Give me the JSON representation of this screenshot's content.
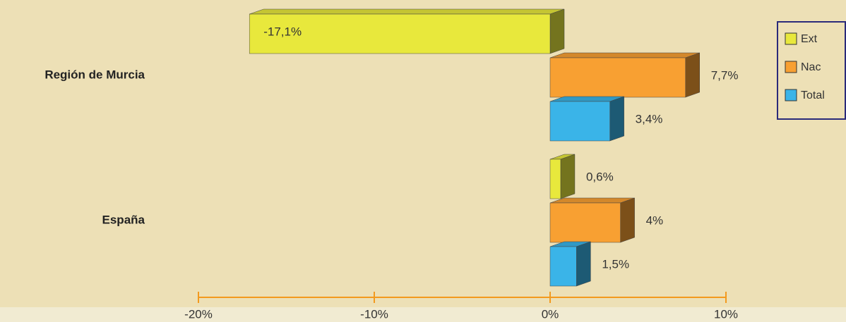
{
  "chart_data": {
    "type": "bar3d_horizontal",
    "categories": [
      "Región de Murcia",
      "España"
    ],
    "series": [
      {
        "name": "Ext",
        "color": "#e8e83c",
        "values": [
          -17.1,
          0.6
        ],
        "value_labels": [
          "-17,1%",
          "0,6%"
        ]
      },
      {
        "name": "Nac",
        "color": "#f8a032",
        "values": [
          7.7,
          4
        ],
        "value_labels": [
          "7,7%",
          "4%"
        ]
      },
      {
        "name": "Total",
        "color": "#3ab4e8",
        "values": [
          3.4,
          1.5
        ],
        "value_labels": [
          "3,4%",
          "1,5%"
        ]
      }
    ],
    "xlim": [
      -20,
      10
    ],
    "xticks": [
      {
        "value": -20,
        "label": "-20%"
      },
      {
        "value": -10,
        "label": "-10%"
      },
      {
        "value": 0,
        "label": "0%"
      },
      {
        "value": 10,
        "label": "10%"
      }
    ],
    "legend": "right"
  }
}
